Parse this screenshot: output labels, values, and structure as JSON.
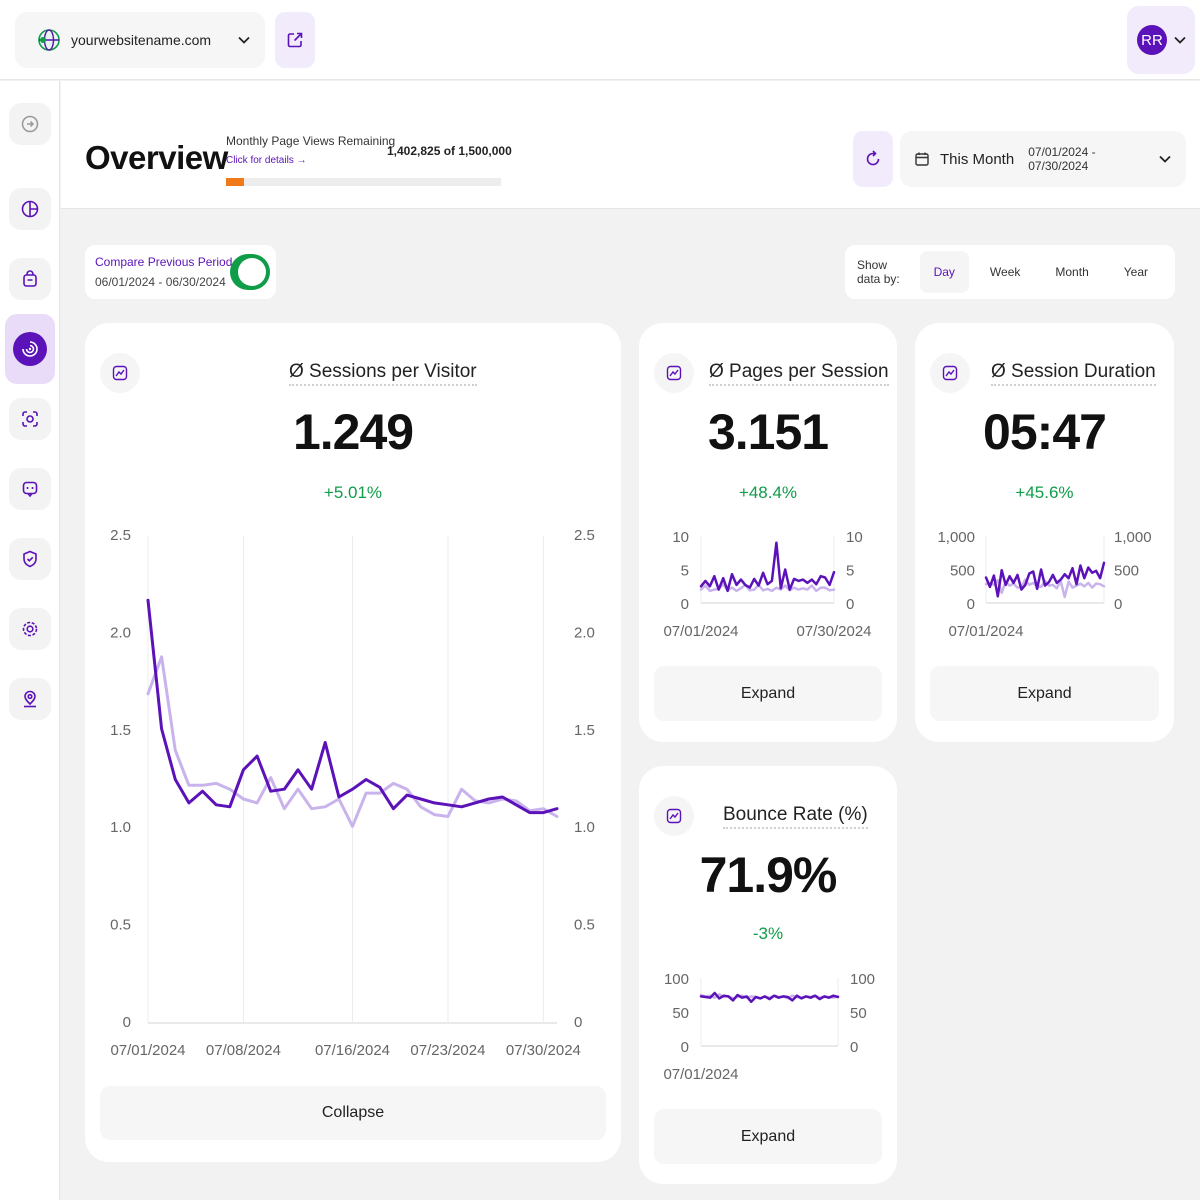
{
  "topbar": {
    "site_name": "yourwebsitename.com",
    "avatar_initials": "RR"
  },
  "sidebar": {
    "items": [
      "logout-icon",
      "pie-chart-icon",
      "shopping-bag-icon",
      "target-icon",
      "face-scan-icon",
      "feedback-icon",
      "shield-check-icon",
      "gear-icon",
      "map-pin-icon"
    ],
    "active_index": 3
  },
  "header": {
    "title": "Overview",
    "page_views_label": "Monthly Page Views Remaining",
    "page_views_link": "Click for details →",
    "page_views_value": "1,402,825 of 1,500,000",
    "page_views_used_fraction": 0.065,
    "date_label": "This Month",
    "date_range": "07/01/2024 - 07/30/2024"
  },
  "compare": {
    "title": "Compare Previous Period",
    "range": "06/01/2024 - 06/30/2024",
    "enabled": true
  },
  "show_data": {
    "label": "Show data by:",
    "options": [
      "Day",
      "Week",
      "Month",
      "Year"
    ],
    "selected": "Day"
  },
  "colors": {
    "accent": "#5b12b8",
    "previous": "#c9b3ec",
    "positive": "#0f9d4a",
    "progress": "#f07a1a"
  },
  "cards": {
    "sessions": {
      "title": "Ø Sessions per Visitor",
      "value": "1.249",
      "delta": "+5.01%",
      "button": "Collapse"
    },
    "pages": {
      "title": "Ø Pages per Session",
      "value": "3.151",
      "delta": "+48.4%",
      "button": "Expand"
    },
    "duration": {
      "title": "Ø Session Duration",
      "value": "05:47",
      "delta": "+45.6%",
      "button": "Expand"
    },
    "bounce": {
      "title": "Bounce Rate (%)",
      "value": "71.9%",
      "delta": "-3%",
      "button": "Expand"
    }
  },
  "chart_data": [
    {
      "type": "line",
      "yticks": [
        "0",
        "0.5",
        "1.0",
        "1.5",
        "2.0",
        "2.5"
      ],
      "ylim": [
        0,
        2.5
      ],
      "xticks": [
        "07/01/2024",
        "07/08/2024",
        "07/16/2024",
        "07/23/2024",
        "07/30/2024"
      ],
      "series": [
        {
          "values": [
            2.17,
            1.51,
            1.25,
            1.13,
            1.19,
            1.12,
            1.11,
            1.3,
            1.37,
            1.19,
            1.2,
            1.3,
            1.2,
            1.44,
            1.16,
            1.2,
            1.25,
            1.21,
            1.1,
            1.17,
            1.15,
            1.13,
            1.12,
            1.11,
            1.13,
            1.15,
            1.16,
            1.12,
            1.08,
            1.08,
            1.1
          ]
        },
        {
          "values": [
            1.69,
            1.88,
            1.4,
            1.22,
            1.22,
            1.23,
            1.2,
            1.15,
            1.13,
            1.26,
            1.1,
            1.2,
            1.1,
            1.11,
            1.15,
            1.01,
            1.18,
            1.18,
            1.23,
            1.2,
            1.11,
            1.07,
            1.06,
            1.2,
            1.14,
            1.13,
            1.15,
            1.14,
            1.09,
            1.1,
            1.06
          ]
        }
      ]
    },
    {
      "type": "line",
      "yticks": [
        "0",
        "5",
        "10"
      ],
      "ylim": [
        0,
        10
      ],
      "xticks": [
        "07/01/2024",
        "07/30/2024"
      ],
      "series": [
        {
          "values": [
            2.5,
            3.3,
            2.5,
            4.0,
            2.0,
            3.7,
            1.8,
            4.3,
            2.7,
            3.5,
            2.7,
            2.3,
            3.6,
            2.6,
            4.5,
            2.8,
            3.3,
            9.0,
            2.2,
            5.0,
            2.0,
            3.6,
            3.3,
            3.5,
            3.0,
            3.5,
            2.8,
            4.0,
            3.8,
            2.7,
            4.6
          ]
        },
        {
          "values": [
            2.0,
            2.6,
            1.8,
            2.0,
            2.1,
            2.8,
            1.9,
            2.3,
            1.8,
            2.2,
            2.7,
            1.9,
            2.0,
            2.7,
            1.9,
            2.1,
            1.8,
            2.3,
            2.0,
            2.6,
            1.9,
            2.3,
            2.0,
            2.2,
            2.0,
            2.6,
            1.8,
            2.3,
            2.3,
            1.9,
            2.0
          ]
        }
      ]
    },
    {
      "type": "line",
      "yticks": [
        "0",
        "500",
        "1,000"
      ],
      "ylim": [
        0,
        1000
      ],
      "xticks": [
        "07/01/2024"
      ],
      "series": [
        {
          "values": [
            380,
            240,
            410,
            100,
            490,
            270,
            400,
            300,
            420,
            200,
            270,
            440,
            470,
            210,
            500,
            260,
            310,
            420,
            300,
            350,
            430,
            370,
            520,
            280,
            560,
            370,
            530,
            450,
            480,
            370,
            600
          ]
        },
        {
          "values": [
            280,
            300,
            270,
            340,
            150,
            320,
            260,
            290,
            230,
            240,
            350,
            270,
            300,
            250,
            240,
            330,
            260,
            270,
            220,
            330,
            90,
            320,
            230,
            260,
            290,
            250,
            300,
            230,
            290,
            280,
            250
          ]
        }
      ]
    },
    {
      "type": "line",
      "yticks": [
        "0",
        "50",
        "100"
      ],
      "ylim": [
        0,
        100
      ],
      "xticks": [
        "07/01/2024"
      ],
      "series": [
        {
          "values": [
            73,
            72,
            71,
            78,
            70,
            74,
            73,
            67,
            75,
            71,
            73,
            65,
            72,
            70,
            73,
            69,
            74,
            71,
            73,
            72,
            67,
            74,
            70,
            73,
            71,
            74,
            69,
            73,
            71,
            74,
            72
          ]
        },
        {
          "values": [
            75,
            73,
            74,
            71,
            76,
            72,
            73,
            70,
            72,
            74,
            71,
            73,
            72,
            70,
            73,
            71,
            74,
            72,
            73,
            70,
            74,
            72,
            71,
            73,
            72,
            74,
            71,
            73,
            72,
            71,
            73
          ]
        }
      ]
    }
  ]
}
